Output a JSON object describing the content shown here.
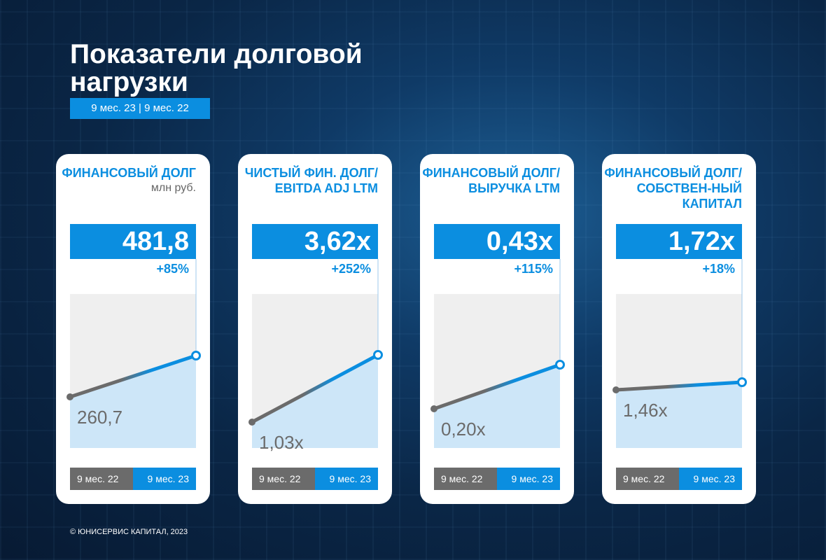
{
  "header": {
    "title": "Показатели долговой нагрузки",
    "period": "9 мес. 23 | 9 мес. 22"
  },
  "colors": {
    "accent": "#0b8ee0",
    "prior": "#6b6b6b",
    "fill": "#cde6f8",
    "plot_bg": "#efefef"
  },
  "chart_data": [
    {
      "type": "line",
      "title": "ФИНАНСОВЫЙ ДОЛГ",
      "unit": "млн руб.",
      "categories": [
        "9 мес. 22",
        "9 мес. 23"
      ],
      "values": [
        260.7,
        481.8
      ],
      "value_label": "481,8",
      "start_label": "260,7",
      "change": "+85%"
    },
    {
      "type": "line",
      "title": "ЧИСТЫЙ ФИН. ДОЛГ/ EBITDA ADJ LTM",
      "unit": "",
      "categories": [
        "9 мес. 22",
        "9 мес. 23"
      ],
      "values": [
        1.03,
        3.62
      ],
      "value_label": "3,62x",
      "start_label": "1,03x",
      "change": "+252%"
    },
    {
      "type": "line",
      "title": "ФИНАНСОВЫЙ ДОЛГ/ ВЫРУЧКА LTM",
      "unit": "",
      "categories": [
        "9 мес. 22",
        "9 мес. 23"
      ],
      "values": [
        0.2,
        0.43
      ],
      "value_label": "0,43x",
      "start_label": "0,20x",
      "change": "+115%"
    },
    {
      "type": "line",
      "title": "ФИНАНСОВЫЙ ДОЛГ/СОБСТВЕН-НЫЙ КАПИТАЛ",
      "unit": "",
      "categories": [
        "9 мес. 22",
        "9 мес. 23"
      ],
      "values": [
        1.46,
        1.72
      ],
      "value_label": "1,72x",
      "start_label": "1,46x",
      "change": "+18%"
    }
  ],
  "footer": "© ЮНИСЕРВИС КАПИТАЛ, 2023"
}
